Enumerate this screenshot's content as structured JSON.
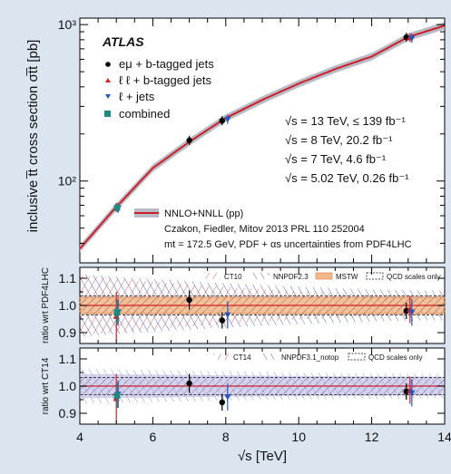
{
  "chart_data": [
    {
      "type": "scatter",
      "panel": "main",
      "ylabel": "inclusive t̅t cross section σt̅t [pb]",
      "y_scale": "log",
      "ylim": [
        30,
        1100
      ],
      "xlim": [
        4,
        14
      ],
      "y_ticks": [
        {
          "value": 100,
          "label": "10²"
        },
        {
          "value": 1000,
          "label": "10³"
        }
      ],
      "experiment": "ATLAS",
      "theory_curve": {
        "name": "NNLO+NNLL (pp)",
        "color": "#cc1f2a",
        "band_color": "#b8bcc6",
        "x": [
          4,
          5,
          5.02,
          6,
          7,
          8,
          9,
          10,
          11,
          12,
          13,
          14
        ],
        "y": [
          37,
          68.5,
          69,
          121,
          178,
          253,
          330,
          420,
          520,
          625,
          834,
          985
        ],
        "band_rel": 0.055
      },
      "series": [
        {
          "name": "eμ + b-tagged jets",
          "color": "#000000",
          "marker": "circle",
          "points": [
            {
              "x": 7.0,
              "y": 182
            },
            {
              "x": 7.9,
              "y": 243
            },
            {
              "x": 12.95,
              "y": 830
            }
          ]
        },
        {
          "name": "ℓ ℓ + b-tagged jets",
          "color": "#e01b24",
          "marker": "triangle-up",
          "points": [
            {
              "x": 5.0,
              "y": 68
            },
            {
              "x": 13.05,
              "y": 826
            }
          ]
        },
        {
          "name": "ℓ + jets",
          "color": "#2a55b8",
          "marker": "triangle-down",
          "points": [
            {
              "x": 5.05,
              "y": 67
            },
            {
              "x": 8.05,
              "y": 248
            },
            {
              "x": 13.1,
              "y": 818
            }
          ]
        },
        {
          "name": "combined",
          "color": "#1f8a80",
          "marker": "square",
          "points": [
            {
              "x": 5.02,
              "y": 67.5
            }
          ]
        }
      ],
      "energy_lines": [
        "√s = 13 TeV, ≤ 139 fb⁻¹",
        "√s = 8 TeV, 20.2 fb⁻¹",
        "√s = 7 TeV, 4.6 fb⁻¹",
        "√s = 5.02 TeV, 0.26 fb⁻¹"
      ],
      "theory_labels": [
        "NNLO+NNLL (pp)",
        "Czakon, Fiedler, Mitov 2013 PRL 110 252004",
        "mt = 172.5 GeV, PDF + αs uncertainties from PDF4LHC"
      ]
    },
    {
      "type": "scatter",
      "panel": "ratio1",
      "ylabel": "ratio wrt PDF4LHC",
      "ylim": [
        0.86,
        1.14
      ],
      "y_ticks": [
        0.9,
        1.0,
        1.1
      ],
      "legend": [
        "CT10",
        "NNPDF2.3",
        "MSTW",
        "QCD scales only"
      ],
      "points": [
        {
          "x": 5.0,
          "y": 0.96,
          "err": 0.09,
          "color": "#e01b24",
          "marker": "triangle-up"
        },
        {
          "x": 5.05,
          "y": 0.975,
          "err": 0.05,
          "color": "#2a55b8",
          "marker": "triangle-down"
        },
        {
          "x": 5.02,
          "y": 0.975,
          "err": 0.045,
          "color": "#1f8a80",
          "marker": "square"
        },
        {
          "x": 7.0,
          "y": 1.02,
          "err": 0.035,
          "color": "#000000",
          "marker": "circle"
        },
        {
          "x": 7.9,
          "y": 0.945,
          "err": 0.03,
          "color": "#000000",
          "marker": "circle"
        },
        {
          "x": 8.05,
          "y": 0.965,
          "err": 0.05,
          "color": "#2a55b8",
          "marker": "triangle-down"
        },
        {
          "x": 12.95,
          "y": 0.98,
          "err": 0.03,
          "color": "#000000",
          "marker": "circle"
        },
        {
          "x": 13.05,
          "y": 0.985,
          "err": 0.05,
          "color": "#e01b24",
          "marker": "triangle-up"
        },
        {
          "x": 13.1,
          "y": 0.975,
          "err": 0.05,
          "color": "#2a55b8",
          "marker": "triangle-down"
        }
      ]
    },
    {
      "type": "scatter",
      "panel": "ratio2",
      "ylabel": "ratio wrt CT14",
      "xlabel": "√s [TeV]",
      "ylim": [
        0.86,
        1.14
      ],
      "xlim": [
        4,
        14
      ],
      "y_ticks": [
        0.9,
        1.0,
        1.1
      ],
      "x_ticks": [
        4,
        6,
        8,
        10,
        12,
        14
      ],
      "legend": [
        "CT14",
        "NNPDF3.1_notop",
        "QCD scales only"
      ],
      "points": [
        {
          "x": 5.0,
          "y": 0.955,
          "err": 0.09,
          "color": "#e01b24",
          "marker": "triangle-up"
        },
        {
          "x": 5.05,
          "y": 0.97,
          "err": 0.05,
          "color": "#2a55b8",
          "marker": "triangle-down"
        },
        {
          "x": 5.02,
          "y": 0.965,
          "err": 0.045,
          "color": "#1f8a80",
          "marker": "square"
        },
        {
          "x": 7.0,
          "y": 1.01,
          "err": 0.035,
          "color": "#000000",
          "marker": "circle"
        },
        {
          "x": 7.9,
          "y": 0.94,
          "err": 0.03,
          "color": "#000000",
          "marker": "circle"
        },
        {
          "x": 8.05,
          "y": 0.96,
          "err": 0.05,
          "color": "#2a55b8",
          "marker": "triangle-down"
        },
        {
          "x": 12.95,
          "y": 0.98,
          "err": 0.03,
          "color": "#000000",
          "marker": "circle"
        },
        {
          "x": 13.05,
          "y": 0.985,
          "err": 0.05,
          "color": "#e01b24",
          "marker": "triangle-up"
        },
        {
          "x": 13.1,
          "y": 0.975,
          "err": 0.05,
          "color": "#2a55b8",
          "marker": "triangle-down"
        }
      ]
    }
  ]
}
